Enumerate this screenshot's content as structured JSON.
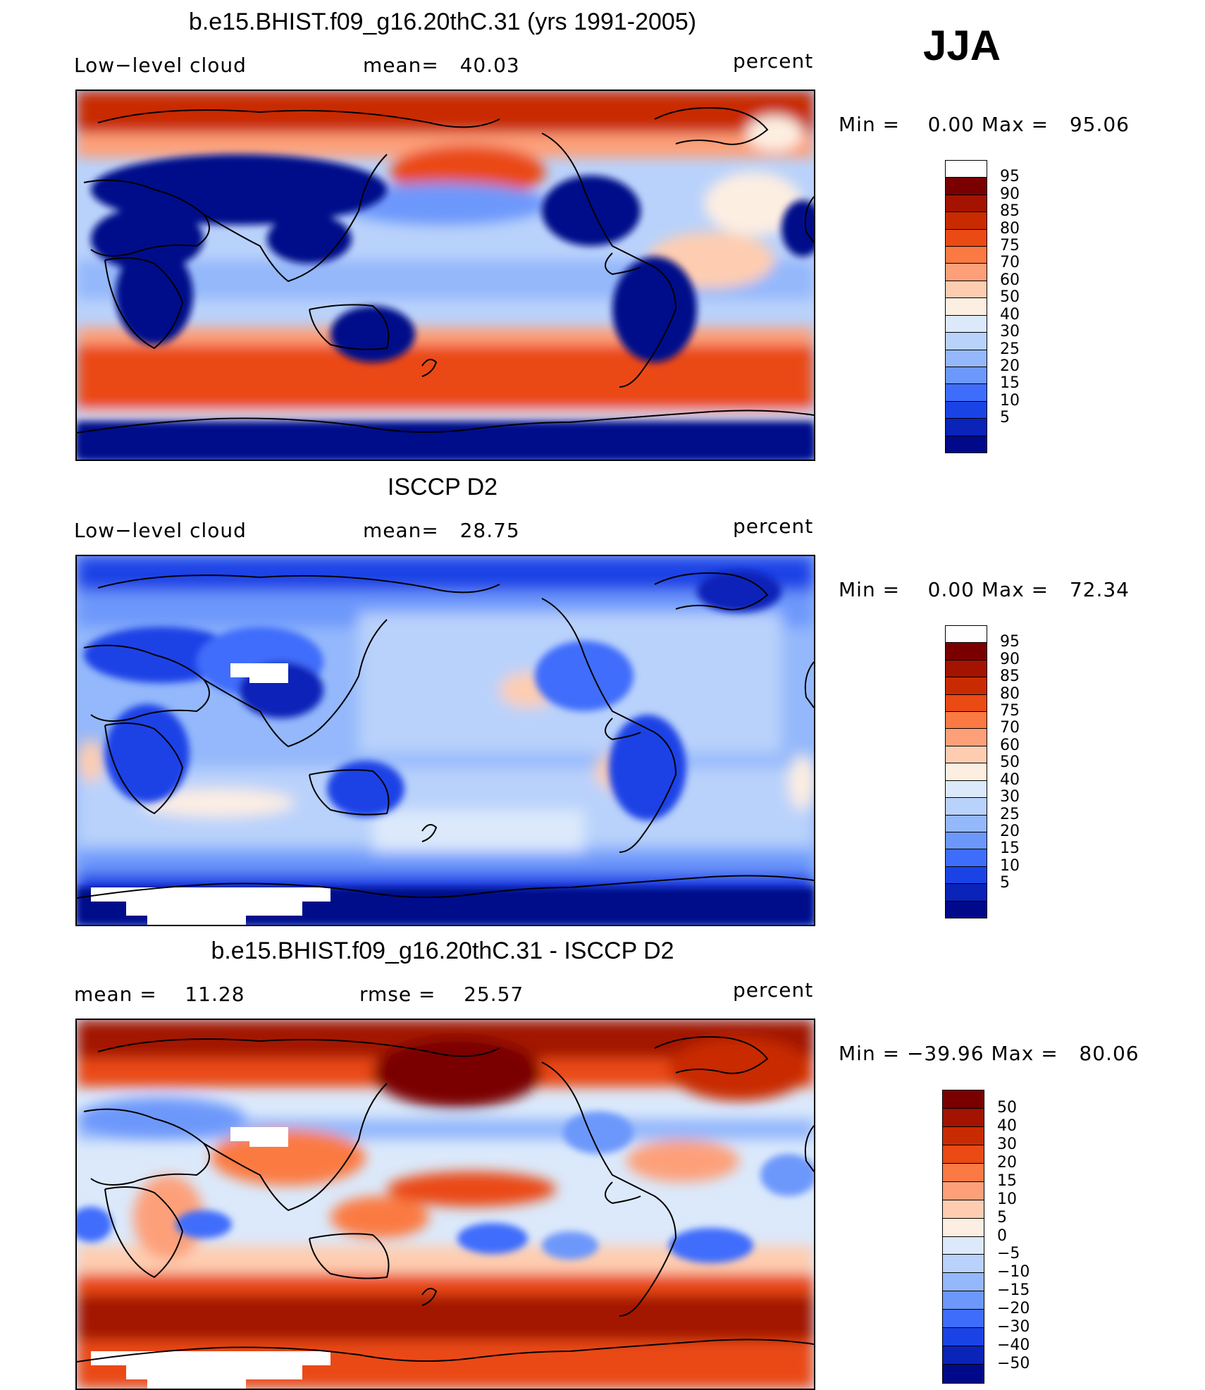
{
  "season": "JJA",
  "panels": [
    {
      "title": "b.e15.BHIST.f09_g16.20thC.31 (yrs 1991-2005)",
      "left_label": "Low−level cloud",
      "mid_label": "mean=   40.03",
      "right_label": "percent",
      "minmax": "Min =    0.00 Max =   95.06",
      "colorbar": {
        "colors": [
          "#fefefe",
          "#7a0000",
          "#a31300",
          "#c92b00",
          "#ea4a13",
          "#fb7a43",
          "#fda07a",
          "#fecdb1",
          "#fdeee2",
          "#dbe9fb",
          "#b9d2fb",
          "#94b8fb",
          "#6d98fb",
          "#3f6dfb",
          "#1a43e6",
          "#0a23b8",
          "#00098a"
        ],
        "labels": [
          "95",
          "90",
          "85",
          "80",
          "75",
          "70",
          "60",
          "50",
          "40",
          "30",
          "25",
          "20",
          "15",
          "10",
          "5"
        ]
      }
    },
    {
      "title": "ISCCP D2",
      "left_label": "Low−level cloud",
      "mid_label": "mean=   28.75",
      "right_label": "percent",
      "minmax": "Min =    0.00 Max =   72.34",
      "colorbar": {
        "colors": [
          "#fefefe",
          "#7a0000",
          "#a31300",
          "#c92b00",
          "#ea4a13",
          "#fb7a43",
          "#fda07a",
          "#fecdb1",
          "#fdeee2",
          "#dbe9fb",
          "#b9d2fb",
          "#94b8fb",
          "#6d98fb",
          "#3f6dfb",
          "#1a43e6",
          "#0a23b8",
          "#00098a"
        ],
        "labels": [
          "95",
          "90",
          "85",
          "80",
          "75",
          "70",
          "60",
          "50",
          "40",
          "30",
          "25",
          "20",
          "15",
          "10",
          "5"
        ]
      }
    },
    {
      "title": "b.e15.BHIST.f09_g16.20thC.31 - ISCCP D2",
      "left_label": "mean =    11.28",
      "mid_label": "rmse =    25.57",
      "right_label": "percent",
      "minmax": "Min = −39.96 Max =   80.06",
      "colorbar": {
        "colors": [
          "#7a0000",
          "#a31300",
          "#c92b00",
          "#ea4a13",
          "#fb7a43",
          "#fda07a",
          "#fecdb1",
          "#fdeee2",
          "#dbe9fb",
          "#b9d2fb",
          "#94b8fb",
          "#6d98fb",
          "#3f6dfb",
          "#1a43e6",
          "#0a23b8",
          "#00098a"
        ],
        "labels": [
          "50",
          "40",
          "30",
          "20",
          "15",
          "10",
          "5",
          "0",
          "−5",
          "−10",
          "−15",
          "−20",
          "−30",
          "−40",
          "−50"
        ]
      }
    }
  ]
}
